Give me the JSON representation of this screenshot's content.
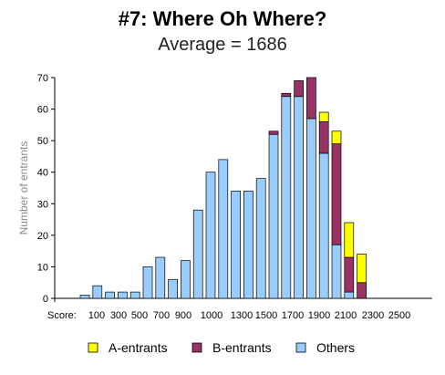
{
  "chart_data": {
    "type": "bar",
    "title": "#7: Where Oh Where?",
    "subtitle": "Average = 1686",
    "xlabel": "Score:",
    "ylabel": "Number of entrants",
    "ylim": [
      0,
      70
    ],
    "yticks": [
      0,
      10,
      20,
      30,
      40,
      50,
      60,
      70
    ],
    "grid": false,
    "stacked": true,
    "categories": [
      "100",
      "200",
      "300",
      "400",
      "500",
      "600",
      "700",
      "800",
      "900",
      "1000",
      "1100",
      "1200",
      "1300",
      "1400",
      "1500",
      "1600",
      "1700",
      "1800",
      "1900",
      "2000",
      "2100",
      "2200",
      "2300",
      "2400",
      "2500"
    ],
    "xtick_labels": [
      "100",
      "300",
      "500",
      "700",
      "900",
      "1000",
      "1300",
      "1500",
      "1700",
      "1900",
      "2100",
      "2300",
      "2500"
    ],
    "series": [
      {
        "name": "Others",
        "color": "#99ccff",
        "values": [
          1,
          4,
          2,
          2,
          2,
          10,
          13,
          6,
          12,
          28,
          40,
          44,
          34,
          34,
          38,
          52,
          64,
          64,
          57,
          46,
          17,
          2,
          0,
          0,
          0
        ]
      },
      {
        "name": "B-entrants",
        "color": "#993366",
        "values": [
          0,
          0,
          0,
          0,
          0,
          0,
          0,
          0,
          0,
          0,
          0,
          0,
          0,
          0,
          0,
          1,
          1,
          5,
          13,
          10,
          32,
          11,
          5,
          0,
          0
        ]
      },
      {
        "name": "A-entrants",
        "color": "#ffff00",
        "values": [
          0,
          0,
          0,
          0,
          0,
          0,
          0,
          0,
          0,
          0,
          0,
          0,
          0,
          0,
          0,
          0,
          0,
          0,
          0,
          3,
          4,
          11,
          9,
          0,
          0
        ]
      }
    ],
    "legend": {
      "position": "bottom",
      "items": [
        {
          "label": "A-entrants",
          "color": "#ffff00"
        },
        {
          "label": "B-entrants",
          "color": "#993366"
        },
        {
          "label": "Others",
          "color": "#99ccff"
        }
      ]
    }
  }
}
